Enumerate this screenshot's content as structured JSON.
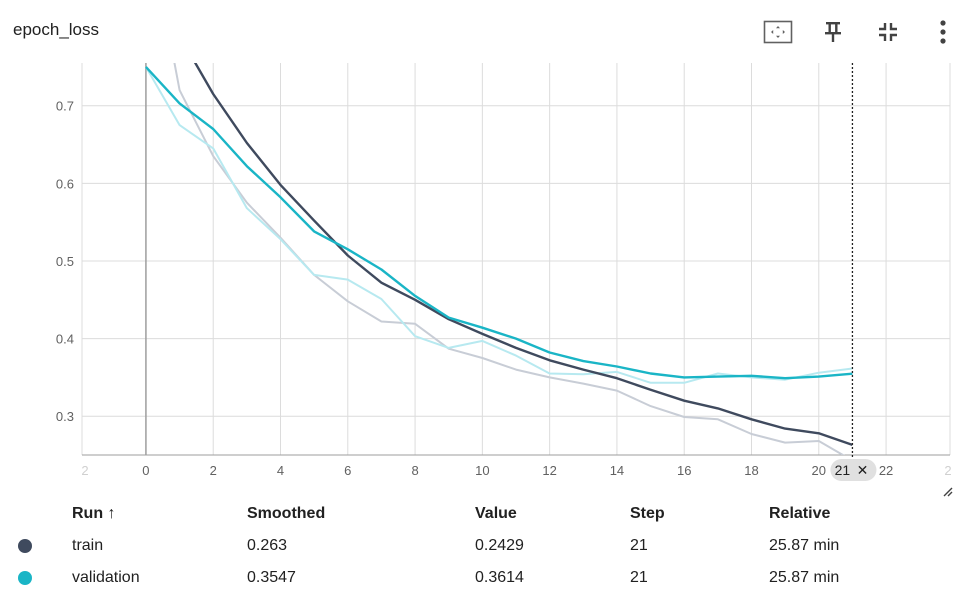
{
  "card": {
    "title": "epoch_loss"
  },
  "toolbar": {
    "icons": [
      "fit-domain-icon",
      "pin-icon",
      "collapse-icon",
      "more-vert-icon"
    ]
  },
  "colors": {
    "train": "#3f4a5e",
    "train_raw": "#c8cdd6",
    "validation": "#1ab5c6",
    "validation_raw": "#b7e9f0",
    "grid": "#dcdcdc",
    "axis": "#9e9e9e"
  },
  "chart_data": {
    "type": "line",
    "title": "epoch_loss",
    "xlabel": "",
    "ylabel": "",
    "xlim": [
      -1.9,
      23.9
    ],
    "ylim": [
      0.25,
      0.755
    ],
    "x_ticks": [
      0,
      2,
      4,
      6,
      8,
      10,
      12,
      14,
      16,
      18,
      20,
      22
    ],
    "x_tick_labels": [
      "0",
      "2",
      "4",
      "6",
      "8",
      "10",
      "12",
      "14",
      "16",
      "18",
      "20",
      "22"
    ],
    "x_edge_labels": [
      "2",
      "2"
    ],
    "y_ticks": [
      0.3,
      0.4,
      0.5,
      0.6,
      0.7
    ],
    "y_tick_labels": [
      "0.3",
      "0.4",
      "0.5",
      "0.6",
      "0.7"
    ],
    "grid": true,
    "hover_step": "21",
    "series": [
      {
        "name": "train",
        "role": "raw",
        "x": [
          0,
          1,
          2,
          3,
          4,
          5,
          6,
          7,
          8,
          9,
          10,
          11,
          12,
          13,
          14,
          15,
          16,
          17,
          18,
          19,
          20,
          21
        ],
        "values": [
          0.95,
          0.72,
          0.635,
          0.575,
          0.53,
          0.482,
          0.448,
          0.422,
          0.419,
          0.387,
          0.375,
          0.36,
          0.35,
          0.342,
          0.333,
          0.313,
          0.299,
          0.296,
          0.277,
          0.266,
          0.268,
          0.2429
        ]
      },
      {
        "name": "validation",
        "role": "raw",
        "x": [
          0,
          1,
          2,
          3,
          4,
          5,
          6,
          7,
          8,
          9,
          10,
          11,
          12,
          13,
          14,
          15,
          16,
          17,
          18,
          19,
          20,
          21
        ],
        "values": [
          0.75,
          0.675,
          0.645,
          0.568,
          0.528,
          0.482,
          0.476,
          0.451,
          0.403,
          0.388,
          0.397,
          0.378,
          0.355,
          0.354,
          0.357,
          0.343,
          0.343,
          0.355,
          0.35,
          0.347,
          0.356,
          0.3614
        ]
      },
      {
        "name": "train",
        "role": "smoothed",
        "x": [
          0,
          1,
          2,
          3,
          4,
          5,
          6,
          7,
          8,
          9,
          10,
          11,
          12,
          13,
          14,
          15,
          16,
          17,
          18,
          19,
          20,
          21
        ],
        "values": [
          0.95,
          0.79,
          0.715,
          0.652,
          0.598,
          0.552,
          0.507,
          0.472,
          0.45,
          0.425,
          0.406,
          0.388,
          0.372,
          0.36,
          0.349,
          0.334,
          0.32,
          0.31,
          0.296,
          0.284,
          0.278,
          0.263
        ]
      },
      {
        "name": "validation",
        "role": "smoothed",
        "x": [
          0,
          1,
          2,
          3,
          4,
          5,
          6,
          7,
          8,
          9,
          10,
          11,
          12,
          13,
          14,
          15,
          16,
          17,
          18,
          19,
          20,
          21
        ],
        "values": [
          0.75,
          0.703,
          0.67,
          0.622,
          0.582,
          0.538,
          0.515,
          0.489,
          0.455,
          0.427,
          0.414,
          0.4,
          0.382,
          0.371,
          0.364,
          0.355,
          0.35,
          0.351,
          0.352,
          0.349,
          0.351,
          0.3547
        ]
      }
    ]
  },
  "table": {
    "headers": {
      "run": "Run ↑",
      "smoothed": "Smoothed",
      "value": "Value",
      "step": "Step",
      "relative": "Relative"
    },
    "rows": [
      {
        "run": "train",
        "smoothed": "0.263",
        "value": "0.2429",
        "step": "21",
        "relative": "25.87 min",
        "color": "#3f4a5e"
      },
      {
        "run": "validation",
        "smoothed": "0.3547",
        "value": "0.3614",
        "step": "21",
        "relative": "25.87 min",
        "color": "#1ab5c6"
      }
    ]
  }
}
